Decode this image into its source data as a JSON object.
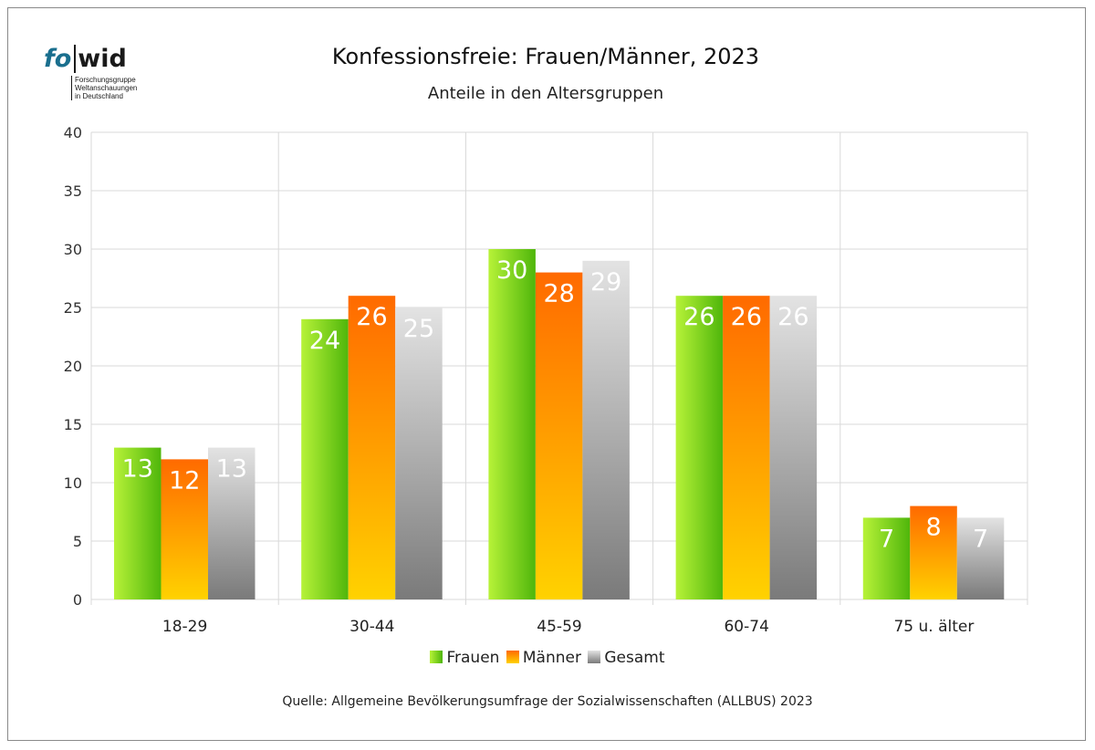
{
  "logo": {
    "mark_left": "fo",
    "mark_right": "wid",
    "subtitle_lines": [
      "Forschungsgruppe",
      "Weltanschauungen",
      "in Deutschland"
    ]
  },
  "colors": {
    "frauen": [
      "#b7f238",
      "#4fb60b"
    ],
    "maenner": [
      "#ff6a00",
      "#ffd200"
    ],
    "gesamt": [
      "#e3e3e3",
      "#7a7a7a"
    ],
    "grid": "#d9d9d9",
    "axis_text": "#333333"
  },
  "source": "Quelle: Allgemeine Bevölkerungsumfrage der Sozialwissenschaften (ALLBUS) 2023",
  "chart_data": {
    "type": "bar",
    "title": "Konfessionsfreie: Frauen/Männer, 2023",
    "subtitle": "Anteile in den Altersgruppen",
    "xlabel": "",
    "ylabel": "",
    "ylim": [
      0,
      40
    ],
    "yticks": [
      "0",
      "5",
      "10",
      "15",
      "20",
      "25",
      "30",
      "35",
      "40"
    ],
    "grid": true,
    "legend_position": "bottom",
    "categories": [
      "18-29",
      "30-44",
      "45-59",
      "60-74",
      "75 u. älter"
    ],
    "series": [
      {
        "name": "Frauen",
        "values": [
          13,
          24,
          30,
          26,
          7
        ]
      },
      {
        "name": "Männer",
        "values": [
          12,
          26,
          28,
          26,
          8
        ]
      },
      {
        "name": "Gesamt",
        "values": [
          13,
          25,
          29,
          26,
          7
        ]
      }
    ]
  }
}
